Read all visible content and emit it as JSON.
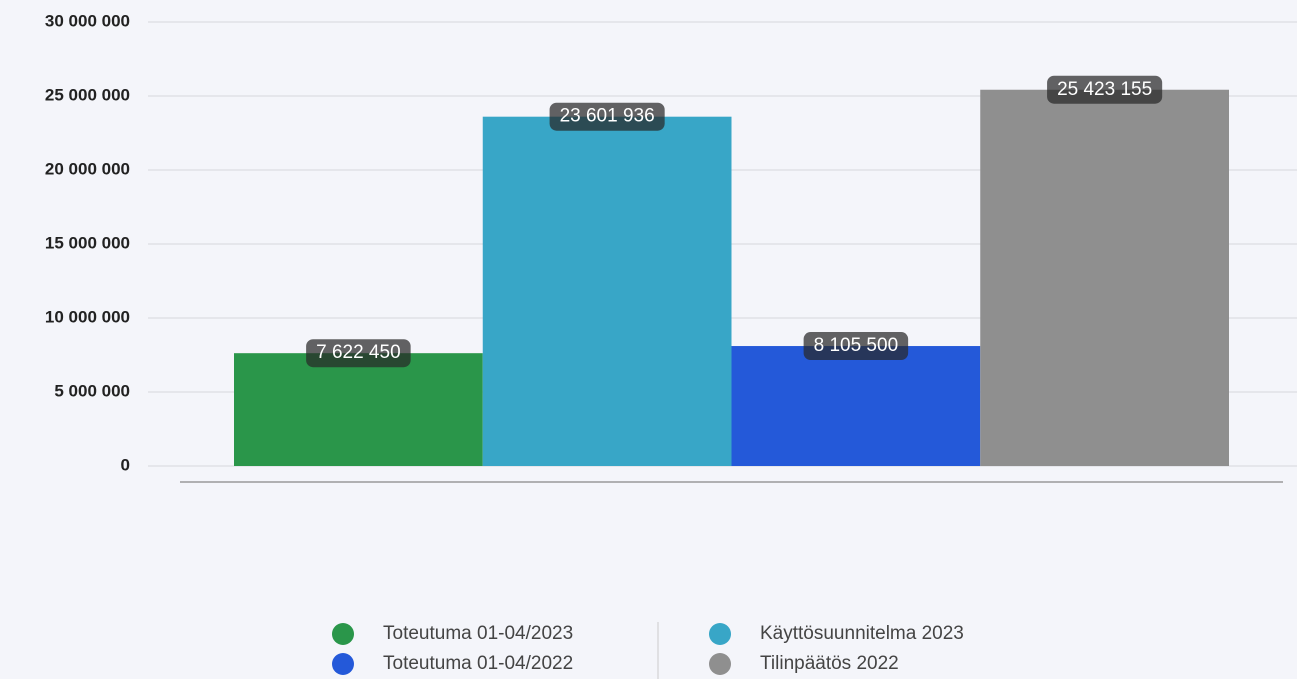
{
  "chart_data": {
    "type": "bar",
    "categories": [
      null
    ],
    "series": [
      {
        "name": "Toteutuma 01-04/2023",
        "color": "#2a964a",
        "values": [
          7622450
        ],
        "value_labels": [
          "7 622 450"
        ]
      },
      {
        "name": "Käyttösuunnitelma 2023",
        "color": "#38a6c7",
        "values": [
          23601936
        ],
        "value_labels": [
          "23 601 936"
        ]
      },
      {
        "name": "Toteutuma 01-04/2022",
        "color": "#2459d9",
        "values": [
          8105500
        ],
        "value_labels": [
          "8 105 500"
        ]
      },
      {
        "name": "Tilinpäätös 2022",
        "color": "#8f8f8f",
        "values": [
          25423155
        ],
        "value_labels": [
          "25 423 155"
        ]
      }
    ],
    "ylim": [
      0,
      30000000
    ],
    "yticks": [
      0,
      {
        "value": 5000000,
        "label": "5 000 000"
      },
      {
        "value": 10000000,
        "label": "10 000 000"
      },
      {
        "value": 15000000,
        "label": "15 000 000"
      },
      {
        "value": 20000000,
        "label": "20 000 000"
      },
      {
        "value": 25000000,
        "label": "25 000 000"
      },
      {
        "value": 30000000,
        "label": "30 000 000"
      }
    ],
    "grid": true
  }
}
